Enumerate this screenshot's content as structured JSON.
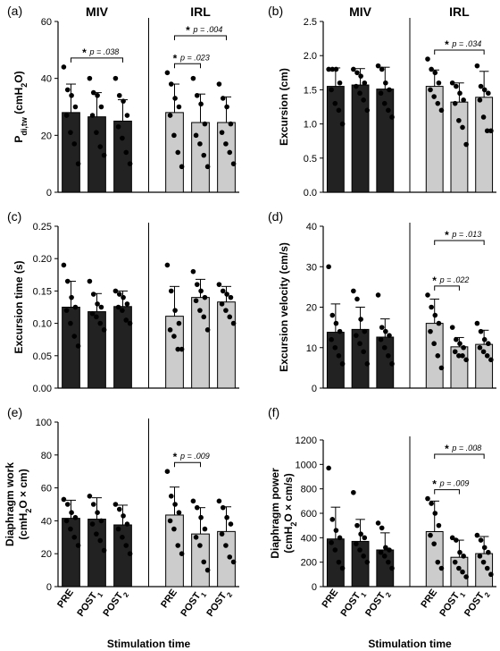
{
  "figure": {
    "xlabel": "Stimulation time",
    "categories": [
      "PRE",
      "POST1",
      "POST2"
    ],
    "category_display": [
      {
        "main": "PRE",
        "sub": ""
      },
      {
        "main": "POST",
        "sub": "1"
      },
      {
        "main": "POST",
        "sub": "2"
      }
    ],
    "groups": [
      "MIV",
      "IRL"
    ],
    "colors": {
      "MIV": "#222222",
      "IRL": "#cccccc",
      "point": "#000000"
    }
  },
  "chart_data": [
    {
      "type": "bar",
      "panel": "(a)",
      "ylabel": "P",
      "ylabel_sub": "di,tw",
      "ylabel_unit": "(cmH2O)",
      "ylim": [
        0,
        60
      ],
      "yticks": [
        0,
        20,
        40,
        60
      ],
      "ytick_labels": [
        "0",
        "20",
        "40",
        "60"
      ],
      "group_labels": [
        "MIV",
        "IRL"
      ],
      "series": [
        {
          "name": "MIV",
          "values": [
            28,
            26.5,
            25
          ],
          "errors": [
            10,
            8.5,
            7.5
          ],
          "points": [
            [
              44,
              36,
              34,
              30,
              27,
              21,
              17,
              10
            ],
            [
              40,
              35,
              34,
              30,
              27,
              21,
              16,
              13
            ],
            [
              40,
              34,
              32,
              27,
              23,
              19,
              14,
              10
            ]
          ]
        },
        {
          "name": "IRL",
          "values": [
            28,
            24.5,
            24.5
          ],
          "errors": [
            10,
            10,
            9
          ],
          "points": [
            [
              42,
              38,
              33,
              30,
              27,
              20,
              14,
              9
            ],
            [
              40,
              34,
              31,
              24,
              20,
              17,
              13,
              9
            ],
            [
              38,
              33,
              30,
              24,
              21,
              17,
              14,
              10
            ]
          ]
        }
      ],
      "comparisons": [
        {
          "group": "MIV",
          "from": 0,
          "to": 2,
          "label": "p = .038",
          "level": 0
        },
        {
          "group": "IRL",
          "from": 0,
          "to": 2,
          "label": "p = .004",
          "level": 1
        },
        {
          "group": "IRL",
          "from": 0,
          "to": 1,
          "label": "p = .023",
          "level": 0
        }
      ]
    },
    {
      "type": "bar",
      "panel": "(b)",
      "ylabel": "Excursion (cm)",
      "ylim": [
        0,
        2.5
      ],
      "yticks": [
        0,
        0.5,
        1.0,
        1.5,
        2.0,
        2.5
      ],
      "ytick_labels": [
        "0.0",
        "0.5",
        "1.0",
        "1.5",
        "2.0",
        "2.5"
      ],
      "group_labels": [
        "MIV",
        "IRL"
      ],
      "series": [
        {
          "name": "MIV",
          "values": [
            1.55,
            1.57,
            1.51
          ],
          "errors": [
            0.27,
            0.24,
            0.32
          ],
          "points": [
            [
              1.8,
              1.8,
              1.8,
              1.6,
              1.5,
              1.3,
              1.2,
              1.0
            ],
            [
              1.8,
              1.75,
              1.7,
              1.6,
              1.55,
              1.45,
              1.35,
              1.2
            ],
            [
              1.85,
              1.8,
              1.6,
              1.5,
              1.45,
              1.3,
              1.2,
              1.1
            ]
          ]
        },
        {
          "name": "IRL",
          "values": [
            1.55,
            1.32,
            1.39
          ],
          "errors": [
            0.24,
            0.28,
            0.38
          ],
          "points": [
            [
              1.95,
              1.8,
              1.75,
              1.6,
              1.5,
              1.4,
              1.3,
              1.2
            ],
            [
              1.6,
              1.55,
              1.45,
              1.35,
              1.3,
              1.05,
              0.95,
              0.7
            ],
            [
              1.85,
              1.55,
              1.5,
              1.45,
              1.35,
              1.1,
              0.9,
              0.9
            ]
          ]
        }
      ],
      "comparisons": [
        {
          "group": "IRL",
          "from": 0,
          "to": 2,
          "label": "p = .034",
          "level": 0
        }
      ]
    },
    {
      "type": "bar",
      "panel": "(c)",
      "ylabel": "Excursion time (s)",
      "ylim": [
        0,
        0.25
      ],
      "yticks": [
        0,
        0.05,
        0.1,
        0.15,
        0.2,
        0.25
      ],
      "ytick_labels": [
        "0.00",
        "0.05",
        "0.10",
        "0.15",
        "0.20",
        "0.25"
      ],
      "group_labels": [],
      "series": [
        {
          "name": "MIV",
          "values": [
            0.125,
            0.118,
            0.126
          ],
          "errors": [
            0.04,
            0.028,
            0.024
          ],
          "points": [
            [
              0.19,
              0.165,
              0.14,
              0.125,
              0.12,
              0.1,
              0.08,
              0.065
            ],
            [
              0.165,
              0.145,
              0.13,
              0.125,
              0.115,
              0.11,
              0.1,
              0.09
            ],
            [
              0.15,
              0.145,
              0.14,
              0.13,
              0.125,
              0.12,
              0.105,
              0.1
            ]
          ]
        },
        {
          "name": "IRL",
          "values": [
            0.111,
            0.14,
            0.133
          ],
          "errors": [
            0.046,
            0.028,
            0.024
          ],
          "points": [
            [
              0.19,
              0.15,
              0.12,
              0.1,
              0.09,
              0.08,
              0.06,
              0.06
            ],
            [
              0.18,
              0.16,
              0.15,
              0.14,
              0.135,
              0.12,
              0.11,
              0.09
            ],
            [
              0.16,
              0.15,
              0.145,
              0.14,
              0.13,
              0.12,
              0.11,
              0.1
            ]
          ]
        }
      ],
      "comparisons": []
    },
    {
      "type": "bar",
      "panel": "(d)",
      "ylabel": "Excursion velocity (cm/s)",
      "ylim": [
        0,
        40
      ],
      "yticks": [
        0,
        10,
        20,
        30,
        40
      ],
      "ytick_labels": [
        "0",
        "10",
        "20",
        "30",
        "40"
      ],
      "group_labels": [],
      "series": [
        {
          "name": "MIV",
          "values": [
            13.8,
            14.5,
            12.6
          ],
          "errors": [
            7,
            5.5,
            4.5
          ],
          "points": [
            [
              30,
              18,
              16,
              14,
              12,
              10,
              8,
              6
            ],
            [
              24,
              22,
              17,
              14,
              13,
              11,
              9,
              6
            ],
            [
              23,
              15,
              14,
              13,
              12,
              10,
              8,
              6
            ]
          ]
        },
        {
          "name": "IRL",
          "values": [
            16,
            10.2,
            10.8
          ],
          "errors": [
            6,
            2.3,
            3.5
          ],
          "points": [
            [
              23,
              20,
              18,
              16,
              14,
              11,
              8,
              5
            ],
            [
              15,
              12,
              11,
              10,
              9,
              8,
              8,
              7
            ],
            [
              16,
              14,
              12,
              11,
              10,
              9,
              8,
              7
            ]
          ]
        }
      ],
      "comparisons": [
        {
          "group": "IRL",
          "from": 0,
          "to": 2,
          "label": "p = .013",
          "level": 1
        },
        {
          "group": "IRL",
          "from": 0,
          "to": 1,
          "label": "p = .022",
          "level": 0
        }
      ]
    },
    {
      "type": "bar",
      "panel": "(e)",
      "ylabel": "Diaphragm work",
      "ylabel_line2": "(cmH2O × cm)",
      "ylim": [
        0,
        100
      ],
      "yticks": [
        0,
        20,
        40,
        60,
        80,
        100
      ],
      "ytick_labels": [
        "0",
        "20",
        "40",
        "60",
        "80",
        "100"
      ],
      "group_labels": [],
      "series": [
        {
          "name": "MIV",
          "values": [
            41.5,
            41,
            37.5
          ],
          "errors": [
            11,
            13,
            12
          ],
          "points": [
            [
              53,
              50,
              45,
              42,
              40,
              35,
              30,
              25
            ],
            [
              55,
              50,
              45,
              40,
              38,
              32,
              28,
              22
            ],
            [
              50,
              47,
              43,
              38,
              35,
              30,
              25,
              20
            ]
          ]
        },
        {
          "name": "IRL",
          "values": [
            43.5,
            32,
            33.5
          ],
          "errors": [
            17,
            16,
            15
          ],
          "points": [
            [
              70,
              55,
              50,
              45,
              40,
              35,
              25,
              20
            ],
            [
              52,
              48,
              42,
              35,
              30,
              25,
              15,
              10
            ],
            [
              52,
              48,
              42,
              38,
              32,
              25,
              18,
              15
            ]
          ]
        }
      ],
      "comparisons": [
        {
          "group": "IRL",
          "from": 0,
          "to": 1,
          "label": "p = .009",
          "level": 0
        }
      ]
    },
    {
      "type": "bar",
      "panel": "(f)",
      "ylabel": "Diaphragm power",
      "ylabel_line2": "(cmH2O × cm/s)",
      "ylim": [
        0,
        1200
      ],
      "yticks": [
        0,
        200,
        400,
        600,
        800,
        1000,
        1200
      ],
      "ytick_labels": [
        "0",
        "200",
        "400",
        "600",
        "800",
        "1000",
        "1200"
      ],
      "group_labels": [],
      "series": [
        {
          "name": "MIV",
          "values": [
            390,
            370,
            300
          ],
          "errors": [
            260,
            180,
            140
          ],
          "points": [
            [
              970,
              550,
              460,
              400,
              360,
              300,
              200,
              150
            ],
            [
              770,
              500,
              430,
              400,
              350,
              300,
              250,
              200
            ],
            [
              520,
              480,
              320,
              300,
              280,
              250,
              200,
              150
            ]
          ]
        },
        {
          "name": "IRL",
          "values": [
            450,
            240,
            270
          ],
          "errors": [
            250,
            140,
            140
          ],
          "points": [
            [
              720,
              680,
              600,
              500,
              420,
              350,
              200,
              150
            ],
            [
              400,
              380,
              280,
              250,
              200,
              150,
              120,
              80
            ],
            [
              420,
              380,
              320,
              280,
              250,
              200,
              150,
              100
            ]
          ]
        }
      ],
      "comparisons": [
        {
          "group": "IRL",
          "from": 0,
          "to": 2,
          "label": "p = .008",
          "level": 1
        },
        {
          "group": "IRL",
          "from": 0,
          "to": 1,
          "label": "p = .009",
          "level": 0
        }
      ]
    }
  ]
}
